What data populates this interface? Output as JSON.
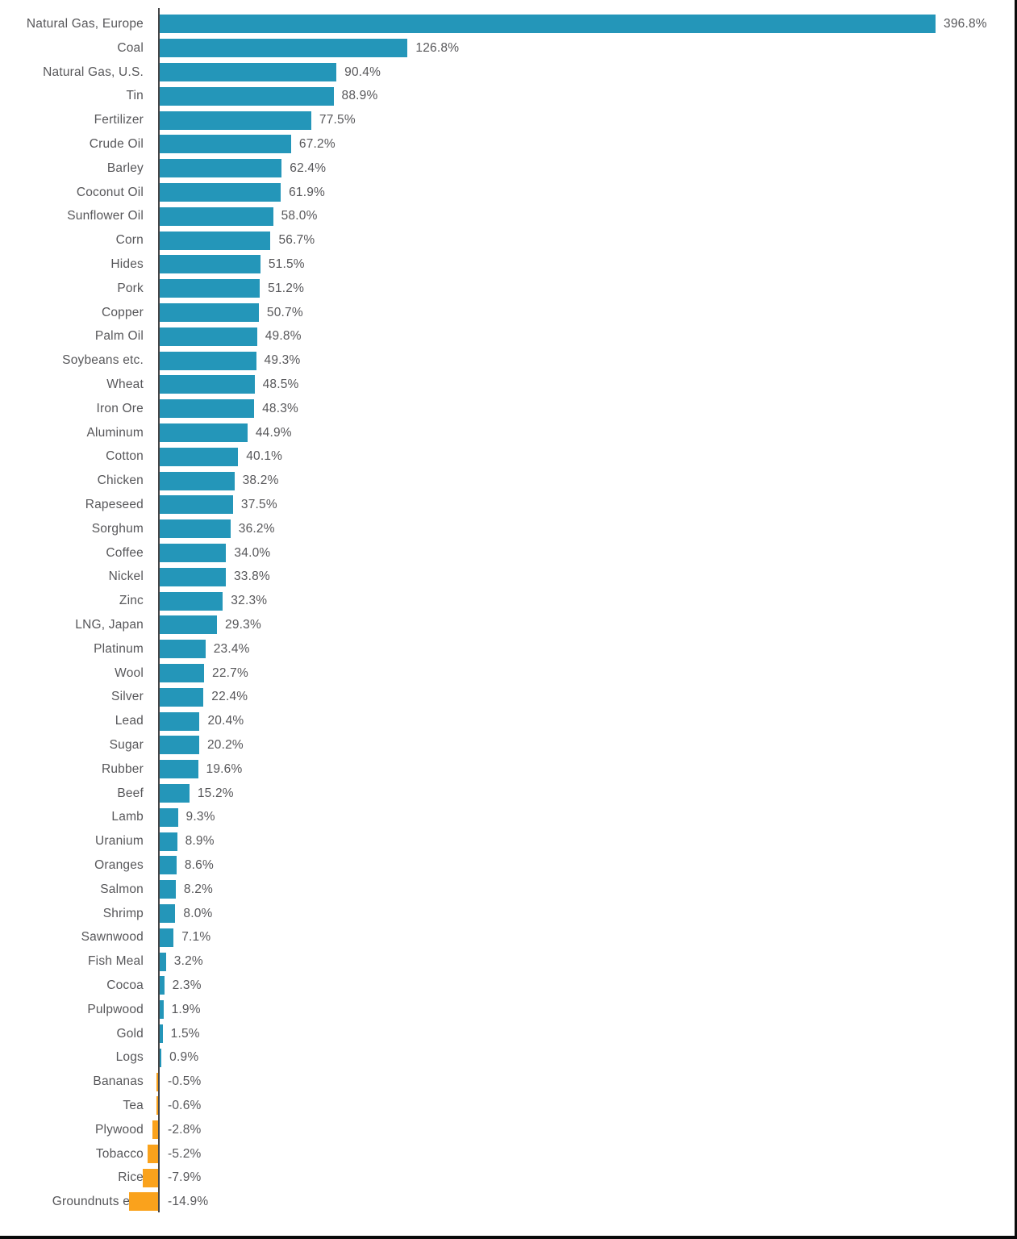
{
  "frame": {
    "background": "#ffffff",
    "edge_line_color": "#0a0a0a"
  },
  "chart_data": {
    "type": "bar",
    "orientation": "horizontal",
    "title": "",
    "xlabel": "",
    "ylabel": "",
    "unit": "%",
    "grid": false,
    "legend": false,
    "baseline": 0,
    "xlim": [
      -20,
      420
    ],
    "categories": [
      "Natural Gas, Europe",
      "Coal",
      "Natural Gas, U.S.",
      "Tin",
      "Fertilizer",
      "Crude Oil",
      "Barley",
      "Coconut Oil",
      "Sunflower Oil",
      "Corn",
      "Hides",
      "Pork",
      "Copper",
      "Palm Oil",
      "Soybeans etc.",
      "Wheat",
      "Iron Ore",
      "Aluminum",
      "Cotton",
      "Chicken",
      "Rapeseed",
      "Sorghum",
      "Coffee",
      "Nickel",
      "Zinc",
      "LNG, Japan",
      "Platinum",
      "Wool",
      "Silver",
      "Lead",
      "Sugar",
      "Rubber",
      "Beef",
      "Lamb",
      "Uranium",
      "Oranges",
      "Salmon",
      "Shrimp",
      "Sawnwood",
      "Fish Meal",
      "Cocoa",
      "Pulpwood",
      "Gold",
      "Logs",
      "Bananas",
      "Tea",
      "Plywood",
      "Tobacco",
      "Rice",
      "Groundnuts etc."
    ],
    "values": [
      396.8,
      126.8,
      90.4,
      88.9,
      77.5,
      67.2,
      62.4,
      61.9,
      58.0,
      56.7,
      51.5,
      51.2,
      50.7,
      49.8,
      49.3,
      48.5,
      48.3,
      44.9,
      40.1,
      38.2,
      37.5,
      36.2,
      34.0,
      33.8,
      32.3,
      29.3,
      23.4,
      22.7,
      22.4,
      20.4,
      20.2,
      19.6,
      15.2,
      9.3,
      8.9,
      8.6,
      8.2,
      8.0,
      7.1,
      3.2,
      2.3,
      1.9,
      1.5,
      0.9,
      -0.5,
      -0.6,
      -2.8,
      -5.2,
      -7.9,
      -14.9
    ],
    "value_labels": [
      "396.8%",
      "126.8%",
      "90.4%",
      "88.9%",
      "77.5%",
      "67.2%",
      "62.4%",
      "61.9%",
      "58.0%",
      "56.7%",
      "51.5%",
      "51.2%",
      "50.7%",
      "49.8%",
      "49.3%",
      "48.5%",
      "48.3%",
      "44.9%",
      "40.1%",
      "38.2%",
      "37.5%",
      "36.2%",
      "34.0%",
      "33.8%",
      "32.3%",
      "29.3%",
      "23.4%",
      "22.7%",
      "22.4%",
      "20.4%",
      "20.2%",
      "19.6%",
      "15.2%",
      "9.3%",
      "8.9%",
      "8.6%",
      "8.2%",
      "8.0%",
      "7.1%",
      "3.2%",
      "2.3%",
      "1.9%",
      "1.5%",
      "0.9%",
      "-0.5%",
      "-0.6%",
      "-2.8%",
      "-5.2%",
      "-7.9%",
      "-14.9%"
    ],
    "bar_color_positive": "#2496B9",
    "bar_color_negative": "#FAA21C",
    "axis_color": "#454547",
    "text_color": "#57575A"
  }
}
